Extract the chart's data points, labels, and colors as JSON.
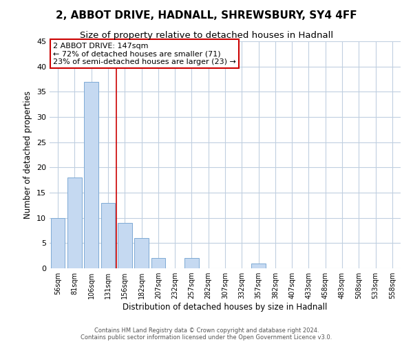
{
  "title": "2, ABBOT DRIVE, HADNALL, SHREWSBURY, SY4 4FF",
  "subtitle": "Size of property relative to detached houses in Hadnall",
  "xlabel": "Distribution of detached houses by size in Hadnall",
  "ylabel": "Number of detached properties",
  "bar_labels": [
    "56sqm",
    "81sqm",
    "106sqm",
    "131sqm",
    "156sqm",
    "182sqm",
    "207sqm",
    "232sqm",
    "257sqm",
    "282sqm",
    "307sqm",
    "332sqm",
    "357sqm",
    "382sqm",
    "407sqm",
    "433sqm",
    "458sqm",
    "483sqm",
    "508sqm",
    "533sqm",
    "558sqm"
  ],
  "bar_values": [
    10,
    18,
    37,
    13,
    9,
    6,
    2,
    0,
    2,
    0,
    0,
    0,
    1,
    0,
    0,
    0,
    0,
    0,
    0,
    0,
    0
  ],
  "bar_color": "#c5d9f1",
  "bar_edge_color": "#7da9d4",
  "vline_color": "#cc0000",
  "ylim": [
    0,
    45
  ],
  "yticks": [
    0,
    5,
    10,
    15,
    20,
    25,
    30,
    35,
    40,
    45
  ],
  "annotation_title": "2 ABBOT DRIVE: 147sqm",
  "annotation_line1": "← 72% of detached houses are smaller (71)",
  "annotation_line2": "23% of semi-detached houses are larger (23) →",
  "annotation_box_color": "#ffffff",
  "annotation_box_edge": "#cc0000",
  "footer_line1": "Contains HM Land Registry data © Crown copyright and database right 2024.",
  "footer_line2": "Contains public sector information licensed under the Open Government Licence v3.0.",
  "background_color": "#ffffff",
  "grid_color": "#c0cfe0",
  "title_fontsize": 11,
  "subtitle_fontsize": 9.5
}
